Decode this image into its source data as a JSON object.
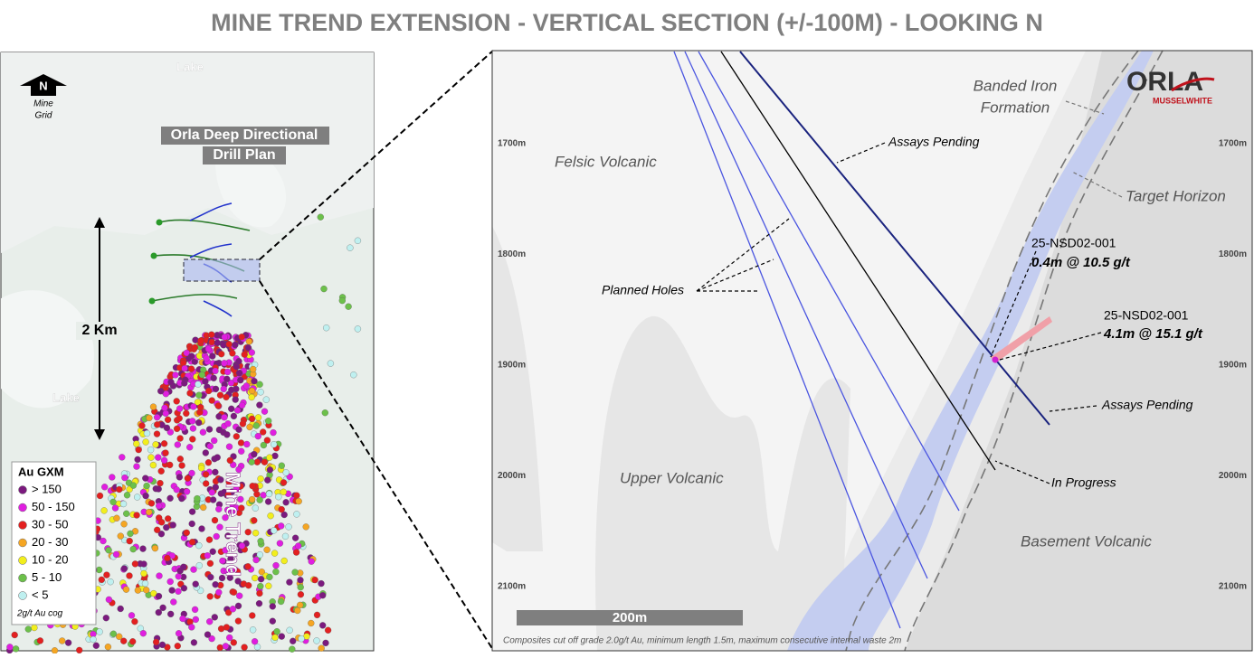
{
  "title": "MINE TREND EXTENSION - VERTICAL SECTION (+/-100M) - LOOKING N",
  "plan_map": {
    "lake_top": "Lake",
    "lake_left": "Lake",
    "north": "N",
    "north_caption": [
      "Mine",
      "Grid"
    ],
    "drill_plan": [
      "Orla Deep Directional",
      "Drill Plan"
    ],
    "scale": "2 Km",
    "trend": "Mine Trend",
    "legend": {
      "title": "Au GXM",
      "items": [
        {
          "label": "> 150",
          "color": "#7b1a7e"
        },
        {
          "label": "50 - 150",
          "color": "#e01ee0"
        },
        {
          "label": "30 - 50",
          "color": "#e32020"
        },
        {
          "label": "20 - 30",
          "color": "#f5a623"
        },
        {
          "label": "10 - 20",
          "color": "#f2ee1c"
        },
        {
          "label": "5 - 10",
          "color": "#6cc04a"
        },
        {
          "label": "< 5",
          "color": "#bff0f0"
        }
      ],
      "note": "2g/t Au cog"
    }
  },
  "section": {
    "elevations": [
      "1700m",
      "1800m",
      "1900m",
      "2000m",
      "2100m"
    ],
    "units": {
      "felsic": "Felsic Volcanic",
      "upper": "Upper Volcanic",
      "basement": "Basement Volcanic",
      "bif": [
        "Banded Iron",
        "Formation"
      ],
      "target": "Target Horizon"
    },
    "annotations": {
      "assays_top": "Assays Pending",
      "planned": "Planned Holes",
      "hole_a": "25-NSD02-001",
      "hole_a_result": "0.4m @ 10.5 g/t",
      "hole_b": "25-NSD02-001",
      "hole_b_result": "4.1m @ 15.1 g/t",
      "assays_bottom": "Assays Pending",
      "in_progress": "In Progress"
    },
    "scale_bar": "200m",
    "footnote": "Composites cut off grade 2.0g/t Au, minimum length 1.5m, maximum consecutive internal waste 2m",
    "logo": {
      "name": "ORLA",
      "sub": "MUSSELWHITE"
    }
  }
}
